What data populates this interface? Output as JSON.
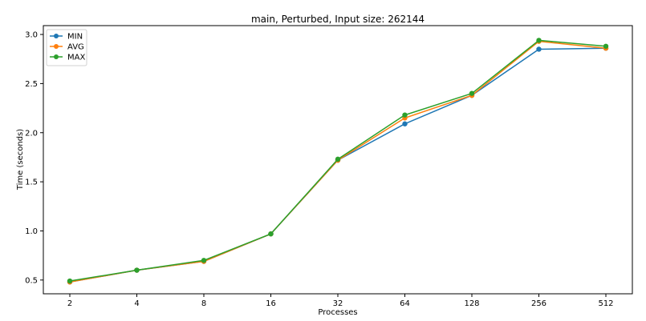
{
  "chart_data": {
    "type": "line",
    "title": "main, Perturbed, Input size: 262144",
    "xlabel": "Processes",
    "ylabel": "Time (seconds)",
    "categories": [
      "2",
      "4",
      "8",
      "16",
      "32",
      "64",
      "128",
      "256",
      "512"
    ],
    "ylim": [
      0.36,
      3.09
    ],
    "yticks": [
      0.5,
      1.0,
      1.5,
      2.0,
      2.5,
      3.0
    ],
    "ytick_labels": [
      "0.5",
      "1.0",
      "1.5",
      "2.0",
      "2.5",
      "3.0"
    ],
    "grid": false,
    "legend_position": "top-left",
    "series": [
      {
        "name": "MIN",
        "color": "#1f77b4",
        "values": [
          0.48,
          0.6,
          0.69,
          0.97,
          1.72,
          2.09,
          2.38,
          2.85,
          2.86
        ]
      },
      {
        "name": "AVG",
        "color": "#ff7f0e",
        "values": [
          0.48,
          0.6,
          0.69,
          0.97,
          1.72,
          2.15,
          2.38,
          2.93,
          2.86
        ]
      },
      {
        "name": "MAX",
        "color": "#2ca02c",
        "values": [
          0.49,
          0.6,
          0.7,
          0.97,
          1.73,
          2.18,
          2.4,
          2.94,
          2.88
        ]
      }
    ]
  }
}
